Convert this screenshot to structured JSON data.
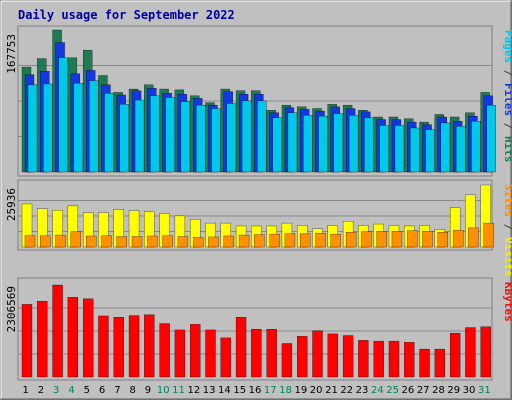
{
  "chart_data": {
    "type": "bar",
    "title": "Daily usage for September 2022",
    "categories": [
      "1",
      "2",
      "3",
      "4",
      "5",
      "6",
      "7",
      "8",
      "9",
      "10",
      "11",
      "12",
      "13",
      "14",
      "15",
      "16",
      "17",
      "18",
      "19",
      "20",
      "21",
      "22",
      "23",
      "24",
      "25",
      "26",
      "27",
      "28",
      "29",
      "30",
      "31"
    ],
    "weekend_days": [
      "3",
      "4",
      "10",
      "11",
      "17",
      "18",
      "24",
      "25",
      "31"
    ],
    "panels": [
      {
        "name": "requests",
        "max_label": "167753",
        "ylim": [
          0,
          167753
        ],
        "right_label": [
          {
            "text": "Pages",
            "color": "#00c8e8"
          },
          {
            "text": " / ",
            "color": "#404040"
          },
          {
            "text": "Files",
            "color": "#1438e0"
          },
          {
            "text": " / ",
            "color": "#404040"
          },
          {
            "text": "Hits",
            "color": "#1e7a50"
          }
        ],
        "series": [
          {
            "name": "Hits",
            "color": "#1e7a50",
            "values": [
              124000,
              134000,
              167753,
              135000,
              144000,
              114000,
              94000,
              98000,
              103000,
              98000,
              97000,
              90000,
              82000,
              98000,
              96000,
              96000,
              73000,
              79000,
              77000,
              75000,
              80000,
              79000,
              73000,
              65000,
              65000,
              63000,
              59000,
              68000,
              65000,
              70000,
              94000
            ]
          },
          {
            "name": "Files",
            "color": "#1438e0",
            "values": [
              115000,
              119000,
              153000,
              116000,
              120000,
              103000,
              91000,
              96000,
              99000,
              93000,
              92000,
              87000,
              79000,
              95000,
              92000,
              92000,
              70000,
              76000,
              74000,
              72000,
              77000,
              75000,
              71000,
              62000,
              62000,
              59000,
              56000,
              65000,
              60000,
              66000,
              90000
            ]
          },
          {
            "name": "Pages",
            "color": "#00c8e8",
            "values": [
              103000,
              104000,
              135000,
              105000,
              108000,
              93000,
              80000,
              85000,
              90000,
              88000,
              83000,
              79000,
              75000,
              81000,
              84000,
              84000,
              64000,
              70000,
              67000,
              66000,
              69000,
              67000,
              64000,
              55000,
              55000,
              52000,
              50000,
              58000,
              54000,
              60000,
              79000
            ]
          }
        ]
      },
      {
        "name": "visits",
        "max_label": "25936",
        "ylim": [
          0,
          25936
        ],
        "right_label": [
          {
            "text": "Sites",
            "color": "#ff9000"
          },
          {
            "text": " / ",
            "color": "#404040"
          },
          {
            "text": "Visits",
            "color": "#f0f000"
          }
        ],
        "series": [
          {
            "name": "Visits",
            "color": "#ffff00",
            "values": [
              18000,
              16000,
              15400,
              17200,
              14400,
              14400,
              15600,
              15200,
              14800,
              14000,
              13000,
              11600,
              10000,
              10000,
              8800,
              8800,
              8800,
              10000,
              9000,
              7600,
              9000,
              10800,
              9000,
              9600,
              9000,
              8800,
              9000,
              7400,
              16400,
              21800,
              25936
            ]
          },
          {
            "name": "Sites",
            "color": "#ff9000",
            "values": [
              4800,
              4700,
              5000,
              6400,
              4600,
              4700,
              4400,
              4400,
              4600,
              4700,
              4400,
              4000,
              4200,
              4600,
              5000,
              5200,
              5400,
              5600,
              5600,
              5800,
              5300,
              6200,
              6400,
              6600,
              6600,
              6800,
              6600,
              6200,
              7000,
              8000,
              10000
            ]
          }
        ]
      },
      {
        "name": "kbytes",
        "max_label": "2306569",
        "ylim": [
          0,
          2306569
        ],
        "right_label": [
          {
            "text": "KBytes",
            "color": "#f01010"
          }
        ],
        "series": [
          {
            "name": "KBytes",
            "color": "#ff0000",
            "values": [
              1820000,
              1900000,
              2306569,
              2000000,
              1960000,
              1530000,
              1500000,
              1540000,
              1560000,
              1340000,
              1180000,
              1320000,
              1180000,
              980000,
              1500000,
              1200000,
              1200000,
              840000,
              1020000,
              1160000,
              1080000,
              1040000,
              920000,
              900000,
              900000,
              870000,
              700000,
              700000,
              1100000,
              1240000,
              1260000
            ]
          }
        ]
      }
    ]
  }
}
